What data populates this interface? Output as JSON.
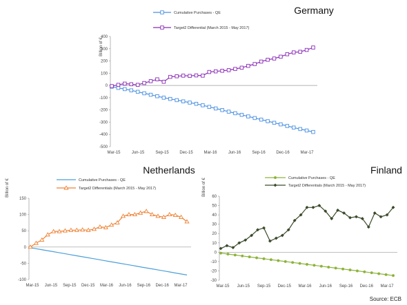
{
  "source": "Source: ECB",
  "chart_data": [
    {
      "type": "line",
      "title": "Germany",
      "ylabel": "Billion of €",
      "ylim": [
        -500,
        400
      ],
      "yticks": [
        400,
        300,
        200,
        100,
        0,
        -100,
        -200,
        -300,
        -400,
        -500
      ],
      "xticks": [
        "Mar-15",
        "Jun-15",
        "Sep-15",
        "Dec-15",
        "Mar-16",
        "Jun-16",
        "Sep-16",
        "Dec-16",
        "Mar-17"
      ],
      "grid": false,
      "legend": "top-center",
      "series": [
        {
          "name": "Cumulative Purchases - QE",
          "color": "#4a90e2",
          "marker": "square",
          "values": [
            -10,
            -20,
            -30,
            -40,
            -52,
            -64,
            -76,
            -88,
            -100,
            -110,
            -120,
            -130,
            -140,
            -150,
            -162,
            -175,
            -188,
            -201,
            -214,
            -227,
            -240,
            -253,
            -266,
            -279,
            -292,
            -305,
            -318,
            -331,
            -344,
            -356,
            -368,
            -380
          ]
        },
        {
          "name": "Target2 Differential (March 2015 - May 2017)",
          "color": "#8a2bb8",
          "marker": "square",
          "values": [
            -5,
            5,
            15,
            10,
            5,
            20,
            35,
            50,
            30,
            70,
            75,
            80,
            78,
            82,
            80,
            110,
            115,
            120,
            125,
            135,
            145,
            160,
            175,
            195,
            210,
            220,
            235,
            255,
            270,
            275,
            290,
            310
          ]
        }
      ]
    },
    {
      "type": "line",
      "title": "Netherlands",
      "ylabel": "Billion of €",
      "ylim": [
        -100,
        150
      ],
      "yticks": [
        150,
        100,
        50,
        0,
        -50,
        -100
      ],
      "xticks": [
        "Mar-15",
        "Jun-15",
        "Sep-15",
        "Dec-15",
        "Mar-16",
        "Jun-16",
        "Sep-16",
        "Dec-16",
        "Mar-17"
      ],
      "grid": false,
      "legend": "top-left",
      "series": [
        {
          "name": "Cumulative Purchases - QE",
          "color": "#4a9fd8",
          "marker": "none",
          "values": [
            -2,
            -5,
            -8,
            -11,
            -14,
            -17,
            -20,
            -23,
            -26,
            -29,
            -32,
            -35,
            -38,
            -41,
            -44,
            -47,
            -50,
            -53,
            -56,
            -59,
            -62,
            -65,
            -68,
            -71,
            -74,
            -77,
            -80,
            -83,
            -86
          ]
        },
        {
          "name": "Target2 Differentials (March 2015 - May 2017)",
          "color": "#f08030",
          "marker": "triangle",
          "values": [
            0,
            12,
            22,
            38,
            48,
            48,
            50,
            52,
            52,
            53,
            52,
            55,
            62,
            60,
            68,
            75,
            95,
            100,
            100,
            105,
            110,
            100,
            95,
            92,
            100,
            98,
            92,
            78
          ]
        }
      ]
    },
    {
      "type": "line",
      "title": "Finland",
      "ylabel": "Billion of €",
      "ylim": [
        -30,
        60
      ],
      "yticks": [
        60,
        50,
        40,
        30,
        20,
        10,
        0,
        -10,
        -20,
        -30
      ],
      "xticks": [
        "Mar-15",
        "Jun-15",
        "Sep-15",
        "Dec-15",
        "Mar-16",
        "Jun-16",
        "Sep-16",
        "Dec-16",
        "Mar-17"
      ],
      "grid": false,
      "legend": "top-left",
      "series": [
        {
          "name": "Cumulative Purchases - QE",
          "color": "#8db33a",
          "marker": "circle",
          "values": [
            -1,
            -2,
            -3,
            -4,
            -5,
            -6,
            -7,
            -8,
            -9,
            -10,
            -11,
            -12,
            -13,
            -14,
            -15,
            -16,
            -17,
            -18,
            -19,
            -20,
            -21,
            -22,
            -23,
            -24,
            -25
          ]
        },
        {
          "name": "Target2 Differentials (March 2015 - May 2017)",
          "color": "#3a4a2a",
          "marker": "diamond",
          "values": [
            4,
            7,
            5,
            10,
            13,
            18,
            24,
            26,
            12,
            15,
            18,
            24,
            34,
            40,
            48,
            48,
            50,
            44,
            36,
            45,
            42,
            37,
            38,
            36,
            27,
            42,
            38,
            40,
            48
          ]
        }
      ]
    }
  ]
}
